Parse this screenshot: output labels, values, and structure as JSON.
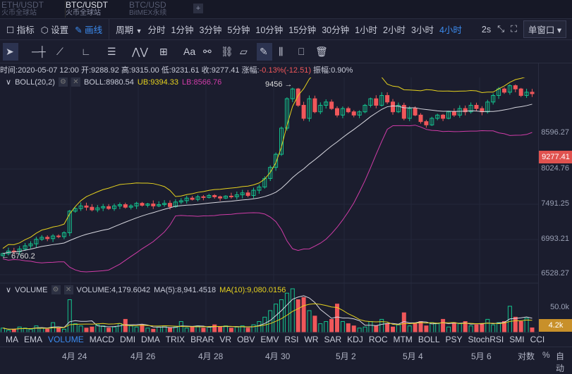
{
  "tabs": [
    {
      "pair": "ETH/USDT",
      "ex": "火币全球站"
    },
    {
      "pair": "BTC/USDT",
      "ex": "火币全球站"
    },
    {
      "pair": "BTC/USD",
      "ex": "BitMEX永续"
    }
  ],
  "add_tab": "+",
  "toolbar": {
    "indicators": "指标",
    "settings": "设置",
    "draw": "画线",
    "period": "周期",
    "intervals": [
      "分时",
      "1分钟",
      "3分钟",
      "5分钟",
      "10分钟",
      "15分钟",
      "30分钟",
      "1小时",
      "2小时",
      "3小时",
      "4小时"
    ],
    "active_interval": "4小时",
    "refresh": "2s",
    "window": "单窗口"
  },
  "draw_tools": [
    "cursor",
    "horizontal-line",
    "trend-line",
    "angle",
    "parallel-lines",
    "wave",
    "rect",
    "text",
    "Aa",
    "magnet",
    "link",
    "ruler",
    "pen",
    "bars",
    "lock",
    "trash"
  ],
  "info": {
    "time_label": "时间:",
    "time": "2020-05-07 12:00",
    "open_label": "开:",
    "open": "9288.92",
    "high_label": "高:",
    "high": "9315.00",
    "low_label": "低:",
    "low": "9231.61",
    "close_label": "收:",
    "close": "9277.41",
    "chg_label": "涨幅:",
    "chg": "-0.13%(-12.51)",
    "amp_label": "振幅:",
    "amp": "0.90%"
  },
  "boll": {
    "name": "BOLL(20,2)",
    "mid": "BOLL:8980.54",
    "ub": "UB:9394.33",
    "lb": "LB:8566.76"
  },
  "annotations": {
    "high": "9456 →",
    "low": "← 6760.2"
  },
  "price_axis": [
    "9277.41",
    "8596.27",
    "8024.76",
    "7491.25",
    "6993.21",
    "6528.27"
  ],
  "current_price": "9277.41",
  "volume": {
    "name": "VOLUME",
    "val": "VOLUME:4,179.6042",
    "ma5": "MA(5):8,941.4518",
    "ma10": "MA(10):9,080.0156",
    "axis_top": "50.0k",
    "current": "4.2k"
  },
  "indicators": [
    "MA",
    "EMA",
    "VOLUME",
    "MACD",
    "DMI",
    "DMA",
    "TRIX",
    "BRAR",
    "VR",
    "OBV",
    "EMV",
    "RSI",
    "WR",
    "SAR",
    "KDJ",
    "ROC",
    "MTM",
    "BOLL",
    "PSY",
    "StochRSI",
    "SMI",
    "CCI"
  ],
  "active_indicator": "VOLUME",
  "dates": [
    "4月 24",
    "4月 26",
    "4月 28",
    "4月 30",
    "5月 2",
    "5月 4",
    "5月 6"
  ],
  "scale": {
    "log": "对数",
    "pct": "%",
    "auto": "自动"
  },
  "colors": {
    "up": "#14c38e",
    "down": "#f0575a",
    "ub": "#e6d21e",
    "mid": "#d8d8e0",
    "lb": "#d03ca8",
    "accent": "#3c8cf0"
  },
  "chart_data": {
    "type": "candlestick",
    "closes": [
      6830,
      6870,
      6860,
      6900,
      6950,
      6980,
      7050,
      7080,
      7060,
      7100,
      7090,
      7150,
      7480,
      7520,
      7560,
      7540,
      7500,
      7530,
      7550,
      7520,
      7560,
      7580,
      7540,
      7560,
      7600,
      7570,
      7590,
      7560,
      7580,
      7600,
      7550,
      7620,
      7640,
      7680,
      7660,
      7700,
      7690,
      7720,
      7700,
      7680,
      7710,
      7700,
      7730,
      7760,
      7720,
      7800,
      7850,
      7980,
      8150,
      8350,
      8750,
      9200,
      9350,
      9100,
      8900,
      9200,
      9000,
      9100,
      9150,
      9050,
      8950,
      9050,
      9000,
      8950,
      9000,
      9100,
      9200,
      9100,
      9250,
      9150,
      9000,
      9100,
      8900,
      9050,
      8950,
      8850,
      8800,
      8900,
      8950,
      8900,
      9000,
      8950,
      9050,
      9000,
      9100,
      9050,
      9000,
      9150,
      9250,
      9350,
      9300,
      9400,
      9350,
      9250,
      9300,
      9277
    ],
    "volumes": [
      4,
      2,
      3,
      5,
      4,
      3,
      6,
      4,
      3,
      9,
      4,
      3,
      30,
      8,
      6,
      4,
      5,
      7,
      6,
      4,
      5,
      8,
      12,
      6,
      5,
      7,
      4,
      3,
      5,
      6,
      4,
      5,
      10,
      4,
      5,
      6,
      4,
      5,
      7,
      5,
      6,
      4,
      5,
      6,
      4,
      7,
      10,
      14,
      20,
      26,
      30,
      36,
      40,
      30,
      32,
      20,
      15,
      8,
      10,
      12,
      26,
      10,
      8,
      6,
      4,
      5,
      10,
      6,
      12,
      8,
      5,
      7,
      18,
      6,
      8,
      10,
      6,
      9,
      8,
      12,
      5,
      9,
      8,
      10,
      6,
      7,
      8,
      12,
      7,
      9,
      10,
      24,
      14,
      10,
      13,
      4.2
    ],
    "ylim": [
      6400,
      9500
    ]
  }
}
